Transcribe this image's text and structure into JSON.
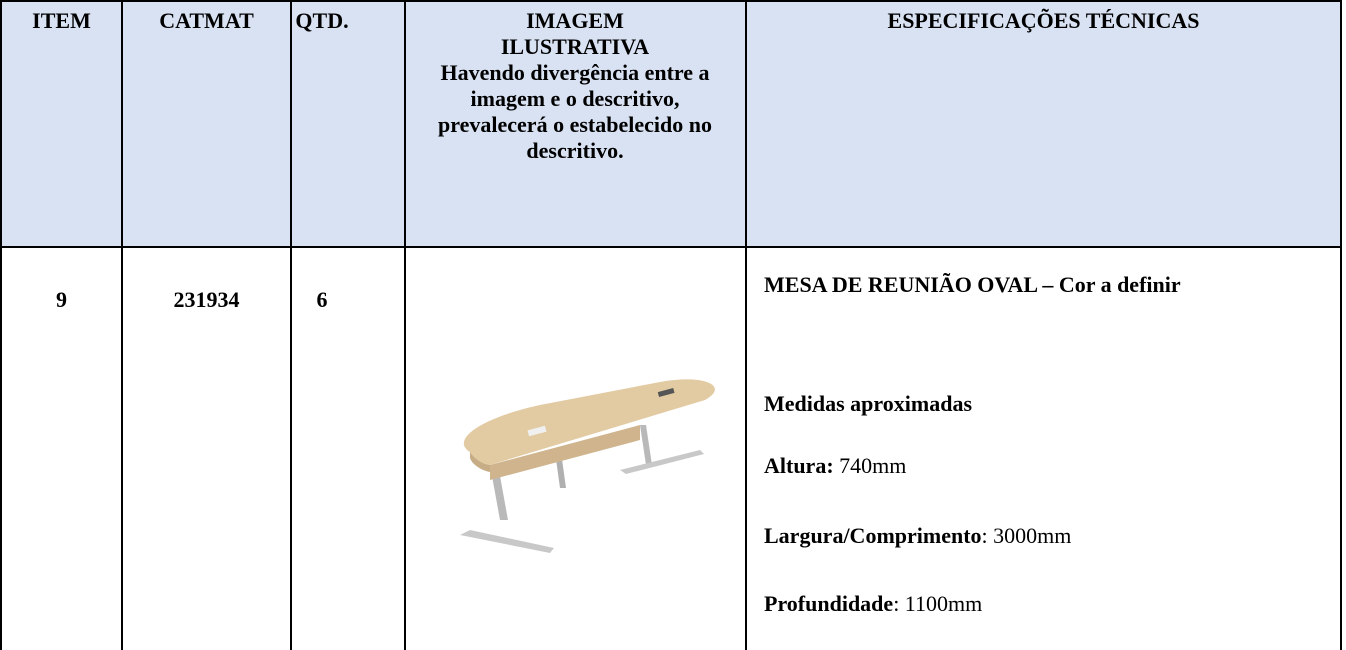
{
  "table": {
    "columns": [
      "ITEM",
      "CATMAT",
      "QTD.",
      {
        "title": "IMAGEM ILUSTRATIVA",
        "note": "Havendo divergência entre a imagem e o descritivo, prevalecerá o estabelecido no descritivo."
      },
      "ESPECIFICAÇÕES TÉCNICAS"
    ],
    "rows": [
      {
        "item": "9",
        "catmat": "231934",
        "qtd": "6",
        "specs": {
          "title": "MESA DE REUNIÃO OVAL – Cor a definir",
          "subtitle": "Medidas aproximadas",
          "measures": [
            {
              "label": "Altura:",
              "value": "740mm"
            },
            {
              "label": "Largura/Comprimento",
              "value": ": 3000mm"
            },
            {
              "label": "Profundidade",
              "value": ": 1100mm"
            }
          ]
        }
      }
    ]
  }
}
